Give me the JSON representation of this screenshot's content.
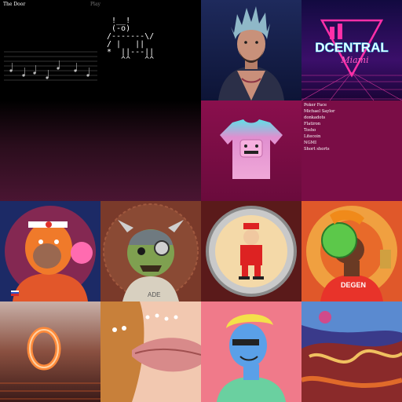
{
  "door": {
    "title": "The Door",
    "play_label": "Play"
  },
  "ascii_art": " !__!\n (-o)\n/-------\\/\n/ |   ||\n*  ||---||\n   ^^   ^^",
  "dcentral": {
    "brand": "DCENTRAL",
    "city": "Miami"
  },
  "shirt_list": [
    "Poker Face",
    "Michael Saylor",
    "donkadots",
    "Flatiron",
    "Tosho",
    "Litecoin",
    "NGMI",
    "Short shorts"
  ],
  "degen_shirt_text": "DEGEN",
  "zombie_shirt_text": "ADE",
  "colors": {
    "list_bg": "#7a0d46",
    "neon_pink": "#ff2fa8",
    "neon_cyan": "#46e0ff"
  }
}
